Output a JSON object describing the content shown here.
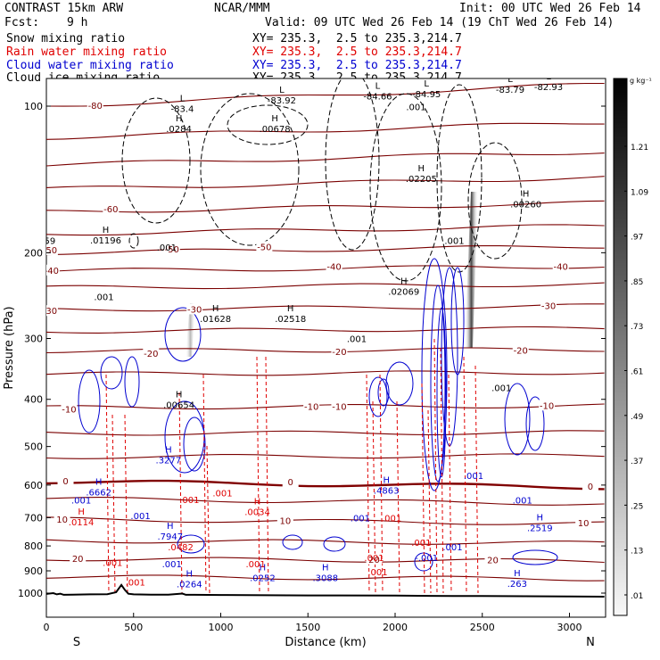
{
  "header": {
    "model": "CONTRAST 15km ARW",
    "center": "NCAR/MMM",
    "init": "Init: 00 UTC Wed 26 Feb 14",
    "fcst_label": "Fcst:",
    "fcst_value": "9 h",
    "valid": "Valid: 09 UTC Wed 26 Feb 14 (19 ChT Wed 26 Feb 14)",
    "fields": [
      {
        "name": "Snow mixing ratio",
        "xy": "XY= 235.3,  2.5 to 235.3,214.7",
        "color": "#000000"
      },
      {
        "name": "Rain water mixing ratio",
        "xy": "XY= 235.3,  2.5 to 235.3,214.7",
        "color": "#e00000"
      },
      {
        "name": "Cloud water mixing ratio",
        "xy": "XY= 235.3,  2.5 to 235.3,214.7",
        "color": "#0000d0"
      },
      {
        "name": "Cloud ice mixing ratio",
        "xy": "XY= 235.3,  2.5 to 235.3,214.7",
        "color": "#000000"
      }
    ]
  },
  "colors": {
    "temperature": "#7a0000",
    "freezing": "#800000",
    "rain": "#e00000",
    "cloud": "#0000d0",
    "snow": "#000000",
    "terrain": "#000000"
  },
  "chart_data": {
    "type": "cross-section",
    "xlabel": "Distance (km)",
    "ylabel": "Pressure (hPa)",
    "xlim": [
      0,
      3200
    ],
    "ylim": [
      1050,
      50
    ],
    "x_ticks": [
      0,
      500,
      1000,
      1500,
      2000,
      2500,
      3000
    ],
    "y_ticks": [
      100,
      200,
      300,
      400,
      500,
      600,
      700,
      800,
      900,
      1000
    ],
    "end_labels": {
      "left": "S",
      "right": "N"
    },
    "temperature_contours": [
      {
        "label": "-80",
        "p_left": 100,
        "p_right": 90
      },
      {
        "label": "",
        "p_left": 116,
        "p_right": 108
      },
      {
        "label": "",
        "p_left": 132,
        "p_right": 124
      },
      {
        "label": "",
        "p_left": 148,
        "p_right": 140
      },
      {
        "label": "",
        "p_left": 165,
        "p_right": 158
      },
      {
        "label": "",
        "p_left": 183,
        "p_right": 176
      },
      {
        "label": "-50",
        "p_left": 200,
        "p_right": 194
      },
      {
        "label": "-40",
        "p_left": 218,
        "p_right": 213
      },
      {
        "label": "",
        "p_left": 236,
        "p_right": 232
      },
      {
        "label": "-30",
        "p_left": 262,
        "p_right": 257
      },
      {
        "label": "",
        "p_left": 290,
        "p_right": 286
      },
      {
        "label": "-20",
        "p_left": 318,
        "p_right": 316
      },
      {
        "label": "",
        "p_left": 355,
        "p_right": 352
      },
      {
        "label": "-10",
        "p_left": 416,
        "p_right": 412
      },
      {
        "label": "",
        "p_left": 470,
        "p_right": 468
      },
      {
        "label": "",
        "p_left": 525,
        "p_right": 522
      },
      {
        "label": "0",
        "p_left": 590,
        "p_right": 606
      },
      {
        "label": "",
        "p_left": 640,
        "p_right": 655
      },
      {
        "label": "10",
        "p_left": 705,
        "p_right": 720
      },
      {
        "label": "",
        "p_left": 780,
        "p_right": 790
      },
      {
        "label": "20",
        "p_left": 850,
        "p_right": 860
      },
      {
        "label": "",
        "p_left": 925,
        "p_right": 935
      }
    ],
    "temperature_labels": [
      {
        "text": "-80",
        "x": 280,
        "p": 100
      },
      {
        "text": "-60",
        "x": 370,
        "p": 163
      },
      {
        "text": "-50",
        "x": 20,
        "p": 198
      },
      {
        "text": "-50",
        "x": 720,
        "p": 197
      },
      {
        "text": "-50",
        "x": 1250,
        "p": 195
      },
      {
        "text": "-40",
        "x": 30,
        "p": 218
      },
      {
        "text": "-40",
        "x": 1650,
        "p": 214
      },
      {
        "text": "-40",
        "x": 2950,
        "p": 214
      },
      {
        "text": "-30",
        "x": 20,
        "p": 264
      },
      {
        "text": "-30",
        "x": 850,
        "p": 262
      },
      {
        "text": "-30",
        "x": 2880,
        "p": 258
      },
      {
        "text": "-20",
        "x": 600,
        "p": 323
      },
      {
        "text": "-20",
        "x": 1680,
        "p": 320
      },
      {
        "text": "-20",
        "x": 2720,
        "p": 318
      },
      {
        "text": "-10",
        "x": 130,
        "p": 420
      },
      {
        "text": "-10",
        "x": 1520,
        "p": 415
      },
      {
        "text": "-10",
        "x": 1680,
        "p": 415
      },
      {
        "text": "-10",
        "x": 2870,
        "p": 413
      },
      {
        "text": "0",
        "x": 110,
        "p": 590
      },
      {
        "text": "0",
        "x": 1400,
        "p": 593
      },
      {
        "text": "0",
        "x": 3120,
        "p": 606
      },
      {
        "text": "10",
        "x": 90,
        "p": 708
      },
      {
        "text": "10",
        "x": 1370,
        "p": 712
      },
      {
        "text": "10",
        "x": 3080,
        "p": 720
      },
      {
        "text": "20",
        "x": 180,
        "p": 852
      },
      {
        "text": "20",
        "x": 1880,
        "p": 855
      },
      {
        "text": "20",
        "x": 2560,
        "p": 858
      }
    ],
    "highs_lows": [
      {
        "mark": "L",
        "value": "-83.4",
        "x": 780,
        "p": 102,
        "color": "#000000"
      },
      {
        "mark": "H",
        "value": ".0284",
        "x": 760,
        "p": 112,
        "color": "#000000"
      },
      {
        "mark": "L",
        "value": "-83.92",
        "x": 1350,
        "p": 98,
        "color": "#000000"
      },
      {
        "mark": "H",
        "value": ".00678",
        "x": 1310,
        "p": 112,
        "color": "#000000"
      },
      {
        "mark": "L",
        "value": "-84.66",
        "x": 1900,
        "p": 96,
        "color": "#000000"
      },
      {
        "mark": "L",
        "value": "-84.95",
        "x": 2180,
        "p": 95,
        "color": "#000000"
      },
      {
        "mark": "L",
        "value": "-83.79",
        "x": 2660,
        "p": 93,
        "color": "#000000"
      },
      {
        "mark": "L",
        "value": "-82.93",
        "x": 2880,
        "p": 92,
        "color": "#000000"
      },
      {
        "mark": "H",
        "value": ".02205",
        "x": 2150,
        "p": 142,
        "color": "#000000"
      },
      {
        "mark": "H",
        "value": ".00260",
        "x": 2750,
        "p": 160,
        "color": "#000000"
      },
      {
        "mark": "H",
        "value": ".01196",
        "x": 340,
        "p": 190,
        "color": "#000000"
      },
      {
        "mark": "H",
        "value": ".02069",
        "x": 2050,
        "p": 242,
        "color": "#000000"
      },
      {
        "mark": "H",
        "value": ".01628",
        "x": 970,
        "p": 275,
        "color": "#000000"
      },
      {
        "mark": "H",
        "value": ".02518",
        "x": 1400,
        "p": 275,
        "color": "#000000"
      },
      {
        "mark": "H",
        "value": ".00654",
        "x": 760,
        "p": 413,
        "color": "#000000"
      },
      {
        "mark": "H",
        "value": ".3277",
        "x": 700,
        "p": 537,
        "color": "#0000d0"
      },
      {
        "mark": "H",
        "value": ".6662",
        "x": 300,
        "p": 625,
        "color": "#0000d0"
      },
      {
        "mark": "H",
        "value": ".4863",
        "x": 1950,
        "p": 620,
        "color": "#0000d0"
      },
      {
        "mark": "H",
        "value": ".0034",
        "x": 1210,
        "p": 685,
        "color": "#e00000"
      },
      {
        "mark": "H",
        "value": ".0114",
        "x": 200,
        "p": 720,
        "color": "#e00000"
      },
      {
        "mark": "H",
        "value": ".7947",
        "x": 710,
        "p": 770,
        "color": "#0000d0"
      },
      {
        "mark": "H",
        "value": ".2519",
        "x": 2830,
        "p": 740,
        "color": "#0000d0"
      },
      {
        "mark": "",
        "value": ".0482",
        "x": 770,
        "p": 810,
        "color": "#e00000"
      },
      {
        "mark": "H",
        "value": ".0264",
        "x": 820,
        "p": 965,
        "color": "#0000d0"
      },
      {
        "mark": "H",
        "value": ".0252",
        "x": 1240,
        "p": 937,
        "color": "#0000d0"
      },
      {
        "mark": "H",
        "value": ".3088",
        "x": 1600,
        "p": 937,
        "color": "#0000d0"
      },
      {
        "mark": "H",
        "value": ".263",
        "x": 2700,
        "p": 963,
        "color": "#0000d0"
      }
    ],
    "small_labels": [
      {
        "text": ".001",
        "x": 330,
        "p": 250,
        "color": "#000000"
      },
      {
        "text": ".001",
        "x": 690,
        "p": 198,
        "color": "#000000"
      },
      {
        "text": ".001",
        "x": 1780,
        "p": 305,
        "color": "#000000"
      },
      {
        "text": ".001",
        "x": 2340,
        "p": 192,
        "color": "#000000"
      },
      {
        "text": ".001",
        "x": 2610,
        "p": 385,
        "color": "#000000"
      },
      {
        "text": ".001",
        "x": 2120,
        "p": 102,
        "color": "#000000"
      },
      {
        "text": ".001",
        "x": 200,
        "p": 655,
        "color": "#0000d0"
      },
      {
        "text": ".001",
        "x": 540,
        "p": 705,
        "color": "#0000d0"
      },
      {
        "text": ".001",
        "x": 1800,
        "p": 712,
        "color": "#0000d0"
      },
      {
        "text": ".001",
        "x": 2730,
        "p": 655,
        "color": "#0000d0"
      },
      {
        "text": ".001",
        "x": 2450,
        "p": 583,
        "color": "#0000d0"
      },
      {
        "text": ".001",
        "x": 2330,
        "p": 817,
        "color": "#0000d0"
      },
      {
        "text": ".001",
        "x": 720,
        "p": 885,
        "color": "#0000d0"
      },
      {
        "text": ".001",
        "x": 820,
        "p": 653,
        "color": "#e00000"
      },
      {
        "text": ".001",
        "x": 1010,
        "p": 633,
        "color": "#e00000"
      },
      {
        "text": ".001",
        "x": 1980,
        "p": 712,
        "color": "#e00000"
      },
      {
        "text": ".001",
        "x": 1880,
        "p": 860,
        "color": "#e00000"
      },
      {
        "text": ".001",
        "x": 1200,
        "p": 885,
        "color": "#e00000"
      },
      {
        "text": ".001",
        "x": 380,
        "p": 880,
        "color": "#e00000"
      },
      {
        "text": ".001",
        "x": 510,
        "p": 965,
        "color": "#e00000"
      },
      {
        "text": ".001",
        "x": 2150,
        "p": 800,
        "color": "#e00000"
      },
      {
        "text": ".001",
        "x": 1900,
        "p": 920,
        "color": "#e00000"
      },
      {
        "text": "-.001",
        "x": 2180,
        "p": 860,
        "color": "#0000d0"
      },
      {
        "text": "t59",
        "x": 10,
        "p": 192,
        "color": "#000000"
      }
    ],
    "colorbar": {
      "unit": "g kg⁻¹",
      "ticks": [
        "1.21",
        "1.09",
        ".97",
        ".85",
        ".73",
        ".61",
        ".49",
        ".37",
        ".25",
        ".13",
        ".01"
      ]
    },
    "terrain": {
      "x": [
        0,
        40,
        60,
        80,
        100,
        150,
        250,
        350,
        400,
        430,
        450,
        470,
        500,
        600,
        700,
        780,
        800,
        850,
        1000,
        1500,
        2000,
        2200,
        2500,
        3000,
        3200
      ],
      "p": [
        1004,
        1000,
        1006,
        1003,
        1008,
        1007,
        1006,
        1005,
        996,
        962,
        985,
        1003,
        1006,
        1007,
        1007,
        1002,
        1008,
        1008,
        1009,
        1011,
        1012,
        1013,
        1014,
        1016,
        1017
      ]
    }
  }
}
